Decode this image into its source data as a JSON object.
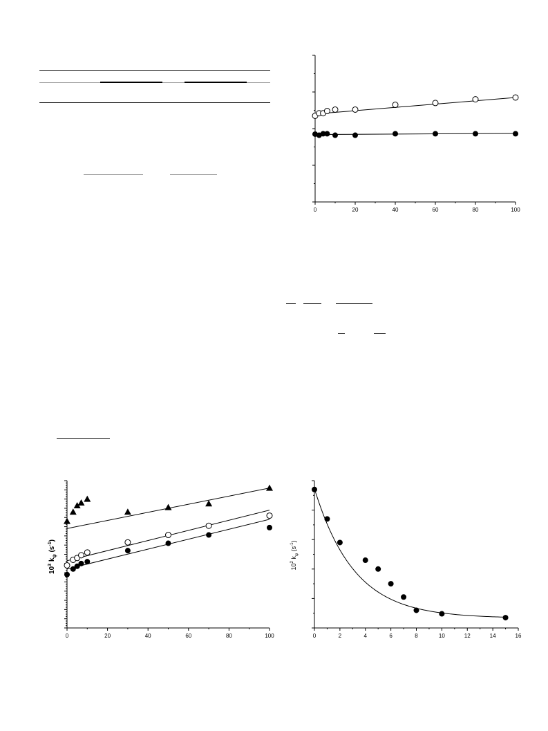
{
  "page": {},
  "charts": {
    "top_right": {
      "type": "scatter",
      "x_ticks": [
        "0",
        "20",
        "40",
        "60",
        "80",
        "100"
      ],
      "y_tick_count": 4,
      "xlim": [
        0,
        100
      ],
      "ylim": [
        0,
        4
      ],
      "series": [
        {
          "marker": "open-circle",
          "x": [
            0,
            2,
            4,
            6,
            10,
            20,
            40,
            60,
            80,
            100
          ],
          "y": [
            2.35,
            2.42,
            2.42,
            2.48,
            2.52,
            2.52,
            2.65,
            2.7,
            2.8,
            2.85
          ],
          "fit": [
            [
              0,
              2.4
            ],
            [
              100,
              2.85
            ]
          ]
        },
        {
          "marker": "filled-circle",
          "x": [
            0,
            2,
            4,
            6,
            10,
            20,
            40,
            60,
            80,
            100
          ],
          "y": [
            1.85,
            1.82,
            1.86,
            1.86,
            1.82,
            1.82,
            1.86,
            1.86,
            1.86,
            1.86
          ],
          "fit": [
            [
              0,
              1.84
            ],
            [
              100,
              1.87
            ]
          ]
        }
      ]
    },
    "bottom_left": {
      "type": "scatter",
      "x_ticks": [
        "0",
        "20",
        "40",
        "60",
        "80",
        "100"
      ],
      "ylabel_base": "10",
      "ylabel_exp": "3",
      "ylabel_text": " k",
      "ylabel_sub": "ψ",
      "ylabel_unit": " (s",
      "ylabel_unit_exp": "-1",
      "ylabel_close": ")",
      "xlim": [
        0,
        100
      ],
      "ylim": [
        0,
        16
      ],
      "series": [
        {
          "marker": "filled-triangle",
          "x": [
            0,
            3,
            5,
            7,
            10,
            30,
            50,
            70,
            100
          ],
          "y": [
            11.6,
            12.6,
            13.3,
            13.6,
            14.0,
            12.6,
            13.1,
            13.5,
            15.2
          ],
          "fit": [
            [
              0,
              10.8
            ],
            [
              100,
              15.2
            ]
          ]
        },
        {
          "marker": "open-circle",
          "x": [
            0,
            3,
            5,
            7,
            10,
            30,
            50,
            70,
            100
          ],
          "y": [
            6.8,
            7.4,
            7.6,
            7.9,
            8.2,
            9.3,
            10.1,
            11.1,
            12.2
          ],
          "fit": [
            [
              0,
              7.3
            ],
            [
              100,
              12.8
            ]
          ]
        },
        {
          "marker": "filled-circle",
          "x": [
            0,
            3,
            5,
            7,
            10,
            30,
            50,
            70,
            100
          ],
          "y": [
            5.8,
            6.4,
            6.7,
            7.0,
            7.2,
            8.4,
            9.2,
            10.1,
            10.9
          ],
          "fit": [
            [
              0,
              6.4
            ],
            [
              100,
              11.8
            ]
          ]
        }
      ]
    },
    "bottom_right": {
      "type": "scatter",
      "x_ticks": [
        "0",
        "2",
        "4",
        "6",
        "8",
        "10",
        "12",
        "14",
        "16"
      ],
      "ylabel_base": "10",
      "ylabel_exp": "2",
      "ylabel_text": " k",
      "ylabel_sub": "ψ",
      "ylabel_unit": " (s",
      "ylabel_unit_exp": "-1",
      "ylabel_close": ")",
      "xlim": [
        0,
        16
      ],
      "ylim": [
        0,
        5
      ],
      "series": [
        {
          "marker": "filled-circle",
          "x": [
            0,
            1,
            2,
            4,
            5,
            6,
            7,
            8,
            10,
            15
          ],
          "y": [
            4.7,
            3.7,
            2.9,
            2.3,
            2.0,
            1.5,
            1.05,
            0.6,
            0.48,
            0.35
          ],
          "fit_curve": {
            "a": 4.4,
            "k": 0.32,
            "c": 0.33
          }
        }
      ]
    }
  }
}
